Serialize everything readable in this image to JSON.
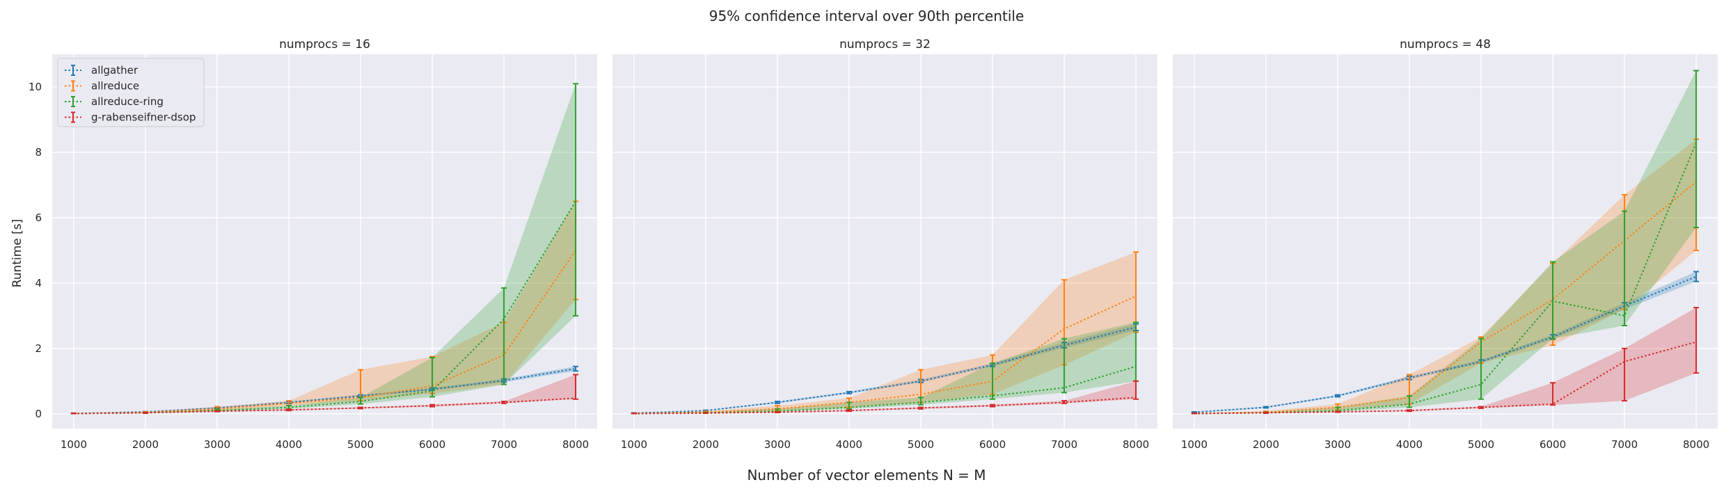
{
  "chart_data": {
    "type": "line",
    "title": "95% confidence interval over 90th percentile",
    "xlabel": "Number of vector elements N = M",
    "ylabel": "Runtime [s]",
    "x": [
      1000,
      2000,
      3000,
      4000,
      5000,
      6000,
      7000,
      8000
    ],
    "xticks": [
      "1000",
      "2000",
      "3000",
      "4000",
      "5000",
      "6000",
      "7000",
      "8000"
    ],
    "xlim": [
      700,
      8300
    ],
    "ylim": [
      -0.45,
      11.0
    ],
    "yticks": [
      "0",
      "2",
      "4",
      "6",
      "8",
      "10"
    ],
    "legend_position": "top-left",
    "colors": {
      "allgather": "#1f77b4",
      "allreduce": "#ff7f0e",
      "allreduce-ring": "#2ca02c",
      "g-rabenseifner-dsop": "#d62728"
    },
    "panels": [
      {
        "title": "numprocs = 16",
        "series": [
          {
            "name": "allgather",
            "values": [
              0.01,
              0.06,
              0.18,
              0.35,
              0.55,
              0.75,
              1.02,
              1.38
            ],
            "lower": [
              0.01,
              0.05,
              0.16,
              0.32,
              0.52,
              0.72,
              0.97,
              1.31
            ],
            "upper": [
              0.02,
              0.07,
              0.2,
              0.38,
              0.58,
              0.79,
              1.07,
              1.45
            ]
          },
          {
            "name": "allreduce",
            "values": [
              0.01,
              0.04,
              0.15,
              0.32,
              0.5,
              0.85,
              1.8,
              5.0
            ],
            "lower": [
              0.01,
              0.03,
              0.1,
              0.25,
              0.4,
              0.62,
              0.9,
              3.5
            ],
            "upper": [
              0.02,
              0.06,
              0.22,
              0.4,
              1.35,
              1.75,
              2.8,
              6.5
            ]
          },
          {
            "name": "allreduce-ring",
            "values": [
              0.01,
              0.03,
              0.1,
              0.2,
              0.38,
              0.7,
              2.9,
              6.5
            ],
            "lower": [
              0.01,
              0.02,
              0.07,
              0.15,
              0.3,
              0.52,
              0.9,
              3.0
            ],
            "upper": [
              0.02,
              0.04,
              0.14,
              0.25,
              0.5,
              1.72,
              3.85,
              10.1
            ]
          },
          {
            "name": "g-rabenseifner-dsop",
            "values": [
              0.01,
              0.03,
              0.08,
              0.12,
              0.18,
              0.25,
              0.35,
              0.48
            ],
            "lower": [
              0.01,
              0.02,
              0.07,
              0.1,
              0.16,
              0.22,
              0.32,
              0.45
            ],
            "upper": [
              0.02,
              0.04,
              0.09,
              0.14,
              0.2,
              0.28,
              0.38,
              1.2
            ]
          }
        ]
      },
      {
        "title": "numprocs = 32",
        "series": [
          {
            "name": "allgather",
            "values": [
              0.02,
              0.1,
              0.35,
              0.65,
              1.0,
              1.5,
              2.1,
              2.65
            ],
            "lower": [
              0.02,
              0.09,
              0.32,
              0.62,
              0.96,
              1.45,
              2.02,
              2.55
            ],
            "upper": [
              0.03,
              0.11,
              0.38,
              0.68,
              1.05,
              1.55,
              2.18,
              2.75
            ]
          },
          {
            "name": "allreduce",
            "values": [
              0.01,
              0.05,
              0.15,
              0.35,
              0.6,
              1.0,
              2.6,
              3.6
            ],
            "lower": [
              0.01,
              0.03,
              0.1,
              0.2,
              0.35,
              0.6,
              1.5,
              2.5
            ],
            "upper": [
              0.02,
              0.08,
              0.25,
              0.48,
              1.35,
              1.8,
              4.1,
              4.95
            ]
          },
          {
            "name": "allreduce-ring",
            "values": [
              0.01,
              0.03,
              0.08,
              0.2,
              0.35,
              0.55,
              0.8,
              1.45
            ],
            "lower": [
              0.01,
              0.02,
              0.06,
              0.15,
              0.28,
              0.45,
              0.65,
              1.0
            ],
            "upper": [
              0.02,
              0.05,
              0.15,
              0.35,
              0.5,
              1.55,
              2.3,
              2.8
            ]
          },
          {
            "name": "g-rabenseifner-dsop",
            "values": [
              0.01,
              0.02,
              0.05,
              0.1,
              0.18,
              0.25,
              0.35,
              0.5
            ],
            "lower": [
              0.01,
              0.02,
              0.04,
              0.08,
              0.15,
              0.22,
              0.32,
              0.45
            ],
            "upper": [
              0.02,
              0.03,
              0.06,
              0.12,
              0.2,
              0.28,
              0.4,
              1.0
            ]
          }
        ]
      },
      {
        "title": "numprocs = 48",
        "series": [
          {
            "name": "allgather",
            "values": [
              0.05,
              0.2,
              0.55,
              1.1,
              1.6,
              2.35,
              3.3,
              4.2
            ],
            "lower": [
              0.04,
              0.18,
              0.52,
              1.05,
              1.55,
              2.28,
              3.2,
              4.05
            ],
            "upper": [
              0.06,
              0.22,
              0.58,
              1.15,
              1.65,
              2.42,
              3.4,
              4.35
            ]
          },
          {
            "name": "allreduce",
            "values": [
              0.01,
              0.05,
              0.2,
              0.5,
              2.2,
              3.5,
              5.3,
              7.1
            ],
            "lower": [
              0.01,
              0.03,
              0.12,
              0.3,
              1.55,
              2.1,
              3.2,
              5.0
            ],
            "upper": [
              0.02,
              0.08,
              0.3,
              1.2,
              2.35,
              4.6,
              6.7,
              8.4
            ]
          },
          {
            "name": "allreduce-ring",
            "values": [
              0.01,
              0.03,
              0.1,
              0.3,
              0.9,
              3.45,
              3.0,
              8.3
            ],
            "lower": [
              0.01,
              0.02,
              0.06,
              0.2,
              0.45,
              2.3,
              2.7,
              5.7
            ],
            "upper": [
              0.02,
              0.05,
              0.2,
              0.55,
              2.3,
              4.65,
              6.2,
              10.5
            ]
          },
          {
            "name": "g-rabenseifner-dsop",
            "values": [
              0.01,
              0.03,
              0.06,
              0.1,
              0.2,
              0.3,
              1.6,
              2.2
            ],
            "lower": [
              0.01,
              0.02,
              0.05,
              0.08,
              0.17,
              0.27,
              0.4,
              1.25
            ],
            "upper": [
              0.02,
              0.04,
              0.07,
              0.12,
              0.22,
              0.95,
              2.0,
              3.25
            ]
          }
        ]
      }
    ]
  }
}
